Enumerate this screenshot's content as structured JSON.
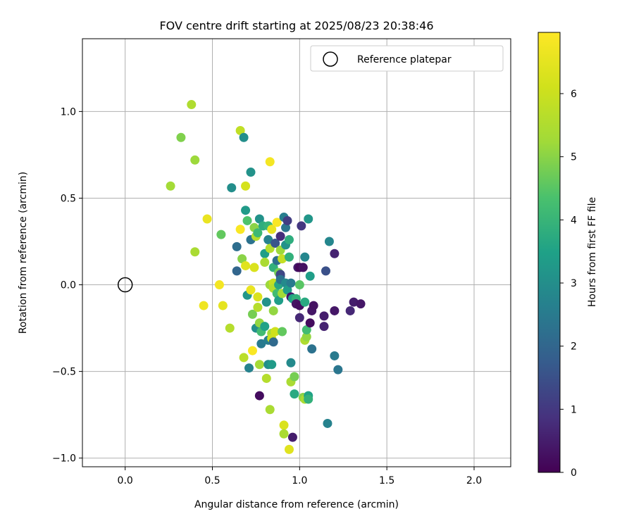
{
  "chart_data": {
    "type": "scatter",
    "title": "FOV centre drift starting at 2025/08/23 20:38:46",
    "xlabel": "Angular distance from reference (arcmin)",
    "ylabel": "Rotation from reference (arcmin)",
    "xlim": [
      -0.245,
      2.21
    ],
    "ylim": [
      -1.05,
      1.42
    ],
    "xticks": [
      0.0,
      0.5,
      1.0,
      1.5,
      2.0
    ],
    "xtick_labels": [
      "0.0",
      "0.5",
      "1.0",
      "1.5",
      "2.0"
    ],
    "yticks": [
      -1.0,
      -0.5,
      0.0,
      0.5,
      1.0
    ],
    "ytick_labels": [
      "−1.0",
      "−0.5",
      "0.0",
      "0.5",
      "1.0"
    ],
    "grid": true,
    "legend": {
      "placement": "top-right",
      "entries": [
        "Reference platepar"
      ]
    },
    "reference_point": {
      "x": 0.0,
      "y": 0.0
    },
    "colorbar": {
      "label": "Hours from first FF file",
      "range": [
        0,
        6.97
      ],
      "ticks": [
        0,
        1,
        2,
        3,
        4,
        5,
        6
      ],
      "tick_labels": [
        "0",
        "1",
        "2",
        "3",
        "4",
        "5",
        "6"
      ],
      "colormap": "viridis"
    },
    "points": [
      {
        "x": 0.38,
        "y": 1.04,
        "h": 5.5
      },
      {
        "x": 0.32,
        "y": 0.85,
        "h": 4.9
      },
      {
        "x": 0.4,
        "y": 0.72,
        "h": 5.2
      },
      {
        "x": 0.26,
        "y": 0.57,
        "h": 5.3
      },
      {
        "x": 0.4,
        "y": 0.19,
        "h": 5.4
      },
      {
        "x": 0.47,
        "y": 0.38,
        "h": 6.6
      },
      {
        "x": 0.45,
        "y": -0.12,
        "h": 6.7
      },
      {
        "x": 0.54,
        "y": 0.0,
        "h": 6.8
      },
      {
        "x": 0.56,
        "y": -0.12,
        "h": 6.5
      },
      {
        "x": 0.55,
        "y": 0.29,
        "h": 4.6
      },
      {
        "x": 0.6,
        "y": -0.25,
        "h": 5.6
      },
      {
        "x": 0.61,
        "y": 0.56,
        "h": 3.0
      },
      {
        "x": 0.64,
        "y": 0.08,
        "h": 2.0
      },
      {
        "x": 0.64,
        "y": 0.22,
        "h": 2.2
      },
      {
        "x": 0.66,
        "y": 0.89,
        "h": 5.8
      },
      {
        "x": 0.66,
        "y": 0.32,
        "h": 6.9
      },
      {
        "x": 0.67,
        "y": 0.15,
        "h": 5.0
      },
      {
        "x": 0.68,
        "y": 0.85,
        "h": 3.0
      },
      {
        "x": 0.69,
        "y": 0.43,
        "h": 3.3
      },
      {
        "x": 0.69,
        "y": 0.57,
        "h": 6.2
      },
      {
        "x": 0.69,
        "y": 0.11,
        "h": 6.4
      },
      {
        "x": 0.7,
        "y": 0.37,
        "h": 4.4
      },
      {
        "x": 0.7,
        "y": -0.06,
        "h": 3.2
      },
      {
        "x": 0.68,
        "y": -0.42,
        "h": 5.7
      },
      {
        "x": 0.71,
        "y": -0.48,
        "h": 2.7
      },
      {
        "x": 0.72,
        "y": 0.65,
        "h": 3.1
      },
      {
        "x": 0.72,
        "y": 0.26,
        "h": 2.3
      },
      {
        "x": 0.72,
        "y": -0.03,
        "h": 6.6
      },
      {
        "x": 0.73,
        "y": -0.17,
        "h": 4.8
      },
      {
        "x": 0.73,
        "y": -0.38,
        "h": 6.9
      },
      {
        "x": 0.74,
        "y": 0.1,
        "h": 6.3
      },
      {
        "x": 0.74,
        "y": 0.33,
        "h": 5.0
      },
      {
        "x": 0.75,
        "y": -0.25,
        "h": 3.0
      },
      {
        "x": 0.75,
        "y": 0.28,
        "h": 5.6
      },
      {
        "x": 0.76,
        "y": -0.07,
        "h": 6.3
      },
      {
        "x": 0.76,
        "y": 0.3,
        "h": 4.1
      },
      {
        "x": 0.77,
        "y": 0.38,
        "h": 3.1
      },
      {
        "x": 0.76,
        "y": -0.13,
        "h": 5.6
      },
      {
        "x": 0.77,
        "y": -0.22,
        "h": 5.1
      },
      {
        "x": 0.77,
        "y": -0.46,
        "h": 5.3
      },
      {
        "x": 0.77,
        "y": -0.64,
        "h": 0.2
      },
      {
        "x": 0.78,
        "y": -0.27,
        "h": 4.2
      },
      {
        "x": 0.78,
        "y": -0.34,
        "h": 2.5
      },
      {
        "x": 0.79,
        "y": 0.34,
        "h": 3.8
      },
      {
        "x": 0.8,
        "y": 0.18,
        "h": 3.4
      },
      {
        "x": 0.8,
        "y": 0.13,
        "h": 5.4
      },
      {
        "x": 0.8,
        "y": -0.24,
        "h": 3.5
      },
      {
        "x": 0.81,
        "y": -0.1,
        "h": 3.1
      },
      {
        "x": 0.81,
        "y": -0.54,
        "h": 5.6
      },
      {
        "x": 0.82,
        "y": 0.34,
        "h": 4.0
      },
      {
        "x": 0.82,
        "y": -0.32,
        "h": 2.6
      },
      {
        "x": 0.82,
        "y": 0.26,
        "h": 2.7
      },
      {
        "x": 0.82,
        "y": -0.46,
        "h": 3.0
      },
      {
        "x": 0.83,
        "y": 0.71,
        "h": 6.8
      },
      {
        "x": 0.83,
        "y": 0.21,
        "h": 5.6
      },
      {
        "x": 0.83,
        "y": 0.0,
        "h": 5.2
      },
      {
        "x": 0.83,
        "y": -0.72,
        "h": 5.4
      },
      {
        "x": 0.84,
        "y": -0.46,
        "h": 3.3
      },
      {
        "x": 0.84,
        "y": -0.28,
        "h": 5.3
      },
      {
        "x": 0.84,
        "y": -0.31,
        "h": 6.0
      },
      {
        "x": 0.84,
        "y": 0.32,
        "h": 6.6
      },
      {
        "x": 0.85,
        "y": 0.1,
        "h": 3.9
      },
      {
        "x": 0.85,
        "y": 0.01,
        "h": 5.9
      },
      {
        "x": 0.85,
        "y": -0.02,
        "h": 5.6
      },
      {
        "x": 0.85,
        "y": -0.15,
        "h": 5.1
      },
      {
        "x": 0.85,
        "y": -0.33,
        "h": 2.1
      },
      {
        "x": 0.86,
        "y": -0.27,
        "h": 6.1
      },
      {
        "x": 0.86,
        "y": 0.24,
        "h": 1.6
      },
      {
        "x": 0.87,
        "y": 0.14,
        "h": 2.2
      },
      {
        "x": 0.87,
        "y": 0.36,
        "h": 6.9
      },
      {
        "x": 0.87,
        "y": -0.05,
        "h": 4.2
      },
      {
        "x": 0.88,
        "y": -0.09,
        "h": 3.4
      },
      {
        "x": 0.88,
        "y": 0.07,
        "h": 4.8
      },
      {
        "x": 0.88,
        "y": 0.0,
        "h": 3.6
      },
      {
        "x": 0.89,
        "y": 0.2,
        "h": 5.2
      },
      {
        "x": 0.89,
        "y": 0.05,
        "h": 2.1
      },
      {
        "x": 0.89,
        "y": 0.06,
        "h": 1.3
      },
      {
        "x": 0.89,
        "y": 0.28,
        "h": 0.8
      },
      {
        "x": 0.89,
        "y": 0.03,
        "h": 2.3
      },
      {
        "x": 0.9,
        "y": -0.27,
        "h": 4.6
      },
      {
        "x": 0.9,
        "y": -0.05,
        "h": 5.3
      },
      {
        "x": 0.9,
        "y": 0.15,
        "h": 5.9
      },
      {
        "x": 0.91,
        "y": -0.81,
        "h": 6.3
      },
      {
        "x": 0.91,
        "y": -0.86,
        "h": 5.4
      },
      {
        "x": 0.91,
        "y": 0.39,
        "h": 2.6
      },
      {
        "x": 0.92,
        "y": 0.33,
        "h": 2.4
      },
      {
        "x": 0.92,
        "y": 0.01,
        "h": 2.9
      },
      {
        "x": 0.92,
        "y": 0.23,
        "h": 3.1
      },
      {
        "x": 0.93,
        "y": -0.03,
        "h": 3.4
      },
      {
        "x": 0.93,
        "y": 0.37,
        "h": 1.1
      },
      {
        "x": 0.94,
        "y": 0.26,
        "h": 3.8
      },
      {
        "x": 0.94,
        "y": 0.16,
        "h": 3.9
      },
      {
        "x": 0.94,
        "y": -0.95,
        "h": 6.4
      },
      {
        "x": 0.95,
        "y": 0.01,
        "h": 2.5
      },
      {
        "x": 0.95,
        "y": -0.07,
        "h": 0.4
      },
      {
        "x": 0.95,
        "y": -0.45,
        "h": 2.9
      },
      {
        "x": 0.95,
        "y": -0.56,
        "h": 5.4
      },
      {
        "x": 0.96,
        "y": -0.08,
        "h": 3.5
      },
      {
        "x": 0.96,
        "y": -0.88,
        "h": 0.5
      },
      {
        "x": 0.97,
        "y": -0.63,
        "h": 3.7
      },
      {
        "x": 0.97,
        "y": -0.53,
        "h": 4.8
      },
      {
        "x": 0.98,
        "y": -0.08,
        "h": 3.9
      },
      {
        "x": 0.98,
        "y": -0.11,
        "h": 0.3
      },
      {
        "x": 0.99,
        "y": 0.1,
        "h": 0.5
      },
      {
        "x": 1.0,
        "y": 0.0,
        "h": 4.5
      },
      {
        "x": 1.0,
        "y": -0.19,
        "h": 0.7
      },
      {
        "x": 1.0,
        "y": 0.1,
        "h": 0.1
      },
      {
        "x": 1.0,
        "y": -0.12,
        "h": 0.2
      },
      {
        "x": 1.01,
        "y": 0.34,
        "h": 1.0
      },
      {
        "x": 1.02,
        "y": 0.1,
        "h": 0.3
      },
      {
        "x": 1.02,
        "y": -0.65,
        "h": 5.0
      },
      {
        "x": 1.03,
        "y": -0.66,
        "h": 5.4
      },
      {
        "x": 1.03,
        "y": -0.32,
        "h": 5.5
      },
      {
        "x": 1.03,
        "y": -0.1,
        "h": 3.7
      },
      {
        "x": 1.03,
        "y": 0.16,
        "h": 2.8
      },
      {
        "x": 1.04,
        "y": -0.3,
        "h": 5.1
      },
      {
        "x": 1.04,
        "y": -0.26,
        "h": 4.2
      },
      {
        "x": 1.05,
        "y": 0.38,
        "h": 3.2
      },
      {
        "x": 1.05,
        "y": -0.64,
        "h": 3.5
      },
      {
        "x": 1.05,
        "y": -0.66,
        "h": 3.9
      },
      {
        "x": 1.06,
        "y": -0.22,
        "h": 0.2
      },
      {
        "x": 1.06,
        "y": 0.05,
        "h": 3.4
      },
      {
        "x": 1.07,
        "y": -0.37,
        "h": 2.3
      },
      {
        "x": 1.07,
        "y": -0.15,
        "h": 0.4
      },
      {
        "x": 1.08,
        "y": -0.12,
        "h": 0.3
      },
      {
        "x": 1.14,
        "y": -0.24,
        "h": 0.6
      },
      {
        "x": 1.14,
        "y": -0.18,
        "h": 0.5
      },
      {
        "x": 1.15,
        "y": 0.08,
        "h": 1.5
      },
      {
        "x": 1.16,
        "y": -0.8,
        "h": 2.7
      },
      {
        "x": 1.17,
        "y": 0.25,
        "h": 2.8
      },
      {
        "x": 1.2,
        "y": -0.15,
        "h": 0.4
      },
      {
        "x": 1.2,
        "y": 0.18,
        "h": 0.6
      },
      {
        "x": 1.2,
        "y": -0.41,
        "h": 2.5
      },
      {
        "x": 1.22,
        "y": -0.49,
        "h": 2.4
      },
      {
        "x": 1.29,
        "y": -0.15,
        "h": 0.7
      },
      {
        "x": 1.31,
        "y": -0.1,
        "h": 0.5
      },
      {
        "x": 1.35,
        "y": -0.11,
        "h": 0.4
      }
    ]
  }
}
